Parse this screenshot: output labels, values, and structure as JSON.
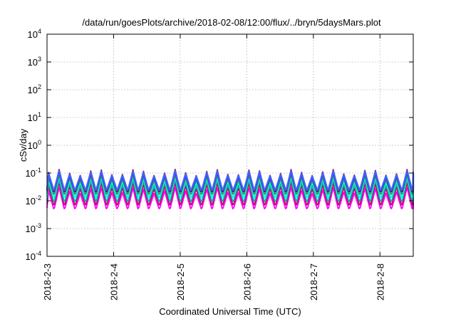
{
  "chart_data": {
    "type": "line",
    "title": "/data/run/goesPlots/archive/2018-02-08/12:00/flux/../bryn/5daysMars.plot",
    "xlabel": "Coordinated Universal Time (UTC)",
    "ylabel": "cSv/day",
    "yscale": "log",
    "ylim": [
      0.0001,
      10000
    ],
    "xlim": [
      "2018-2-3",
      "2018-2-8 12:00"
    ],
    "grid": true,
    "legend": "none",
    "x_ticks": [
      "2018-2-3",
      "2018-2-4",
      "2018-2-5",
      "2018-2-6",
      "2018-2-7",
      "2018-2-8"
    ],
    "y_ticks": [
      {
        "value": 0.0001,
        "base": "10",
        "exp": "-4"
      },
      {
        "value": 0.001,
        "base": "10",
        "exp": "-3"
      },
      {
        "value": 0.01,
        "base": "10",
        "exp": "-2"
      },
      {
        "value": 0.1,
        "base": "10",
        "exp": "-1"
      },
      {
        "value": 1,
        "base": "10",
        "exp": "0"
      },
      {
        "value": 10,
        "base": "10",
        "exp": "1"
      },
      {
        "value": 100,
        "base": "10",
        "exp": "2"
      },
      {
        "value": 1000,
        "base": "10",
        "exp": "3"
      },
      {
        "value": 10000,
        "base": "10",
        "exp": "4"
      }
    ],
    "pattern": {
      "period_hours": 3.8,
      "sawtooth": "rise then drop each period"
    },
    "series": [
      {
        "color": "#ff00ff",
        "low": 0.0055,
        "high": 0.03
      },
      {
        "color": "#cc0066",
        "low": 0.0075,
        "high": 0.045
      },
      {
        "color": "#00b0b0",
        "low": 0.01,
        "high": 0.06
      },
      {
        "color": "#00ffff",
        "low": 0.014,
        "high": 0.075
      },
      {
        "color": "#40a040",
        "low": 0.018,
        "high": 0.085
      },
      {
        "color": "#2020ff",
        "low": 0.022,
        "high": 0.105
      },
      {
        "color": "#c00000",
        "low": 0.024,
        "high": 0.135
      },
      {
        "color": "#4060ff",
        "low": 0.026,
        "high": 0.12
      }
    ]
  }
}
